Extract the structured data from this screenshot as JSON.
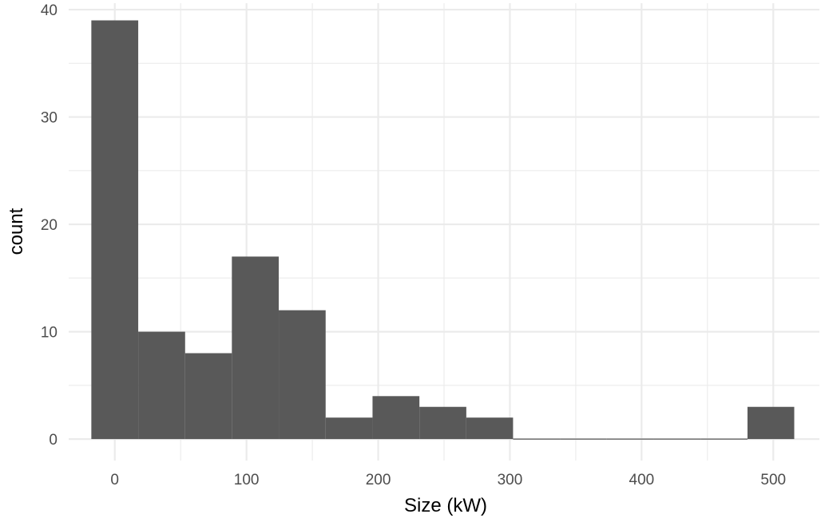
{
  "chart_data": {
    "type": "bar",
    "subtype": "histogram",
    "xlabel": "Size (kW)",
    "ylabel": "count",
    "xlim": [
      -35,
      535
    ],
    "ylim": [
      -2,
      40.6
    ],
    "x_ticks": [
      0,
      100,
      200,
      300,
      400,
      500
    ],
    "y_ticks": [
      0,
      10,
      20,
      30,
      40
    ],
    "grid": true,
    "bar_color": "#595959",
    "bins": [
      {
        "x0": -17.8,
        "x1": 17.8,
        "count": 39
      },
      {
        "x0": 17.8,
        "x1": 53.4,
        "count": 10
      },
      {
        "x0": 53.4,
        "x1": 88.9,
        "count": 8
      },
      {
        "x0": 88.9,
        "x1": 124.5,
        "count": 17
      },
      {
        "x0": 124.5,
        "x1": 160.1,
        "count": 12
      },
      {
        "x0": 160.1,
        "x1": 195.7,
        "count": 2
      },
      {
        "x0": 195.7,
        "x1": 231.3,
        "count": 4
      },
      {
        "x0": 231.3,
        "x1": 266.9,
        "count": 3
      },
      {
        "x0": 266.9,
        "x1": 302.4,
        "count": 2
      },
      {
        "x0": 302.4,
        "x1": 338.0,
        "count": 0
      },
      {
        "x0": 338.0,
        "x1": 373.6,
        "count": 0
      },
      {
        "x0": 373.6,
        "x1": 409.2,
        "count": 0
      },
      {
        "x0": 409.2,
        "x1": 444.8,
        "count": 0
      },
      {
        "x0": 444.8,
        "x1": 480.4,
        "count": 0
      },
      {
        "x0": 480.4,
        "x1": 515.9,
        "count": 3
      }
    ]
  }
}
